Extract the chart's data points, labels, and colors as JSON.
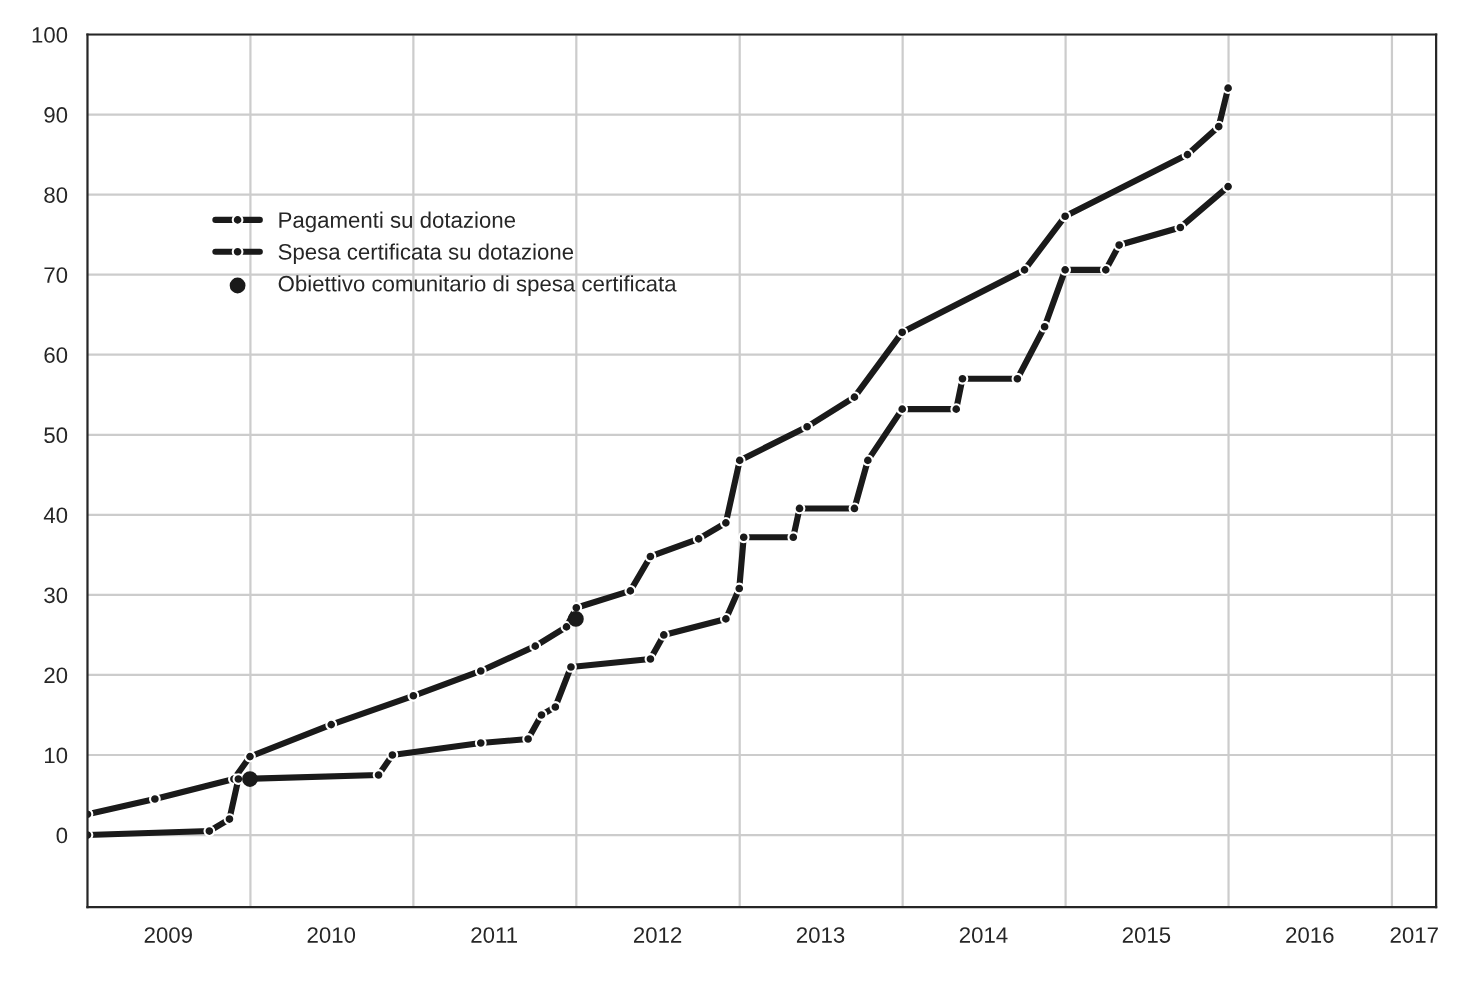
{
  "chart_data": {
    "type": "line",
    "series": [
      {
        "name": "Pagamenti su dotazione",
        "color": "#1a1a1a",
        "marker": "circle",
        "x": [
          "2009-01-01",
          "2009-06-01",
          "2009-11-25",
          "2009-12-31",
          "2010-07-01",
          "2011-01-01",
          "2011-06-01",
          "2011-10-01",
          "2011-12-10",
          "2012-01-01",
          "2012-05-01",
          "2012-06-15",
          "2012-10-01",
          "2012-12-01",
          "2013-01-01",
          "2013-06-01",
          "2013-09-15",
          "2013-12-31",
          "2014-10-01",
          "2014-12-31",
          "2015-10-01",
          "2015-12-10",
          "2015-12-31"
        ],
        "values": [
          2.6,
          4.5,
          7.0,
          9.8,
          13.8,
          17.4,
          20.5,
          23.6,
          26,
          28.4,
          30.5,
          34.8,
          37,
          39,
          46.8,
          51,
          54.7,
          62.8,
          70.6,
          77.3,
          85,
          88.5,
          93.3
        ]
      },
      {
        "name": "Spesa certificata su dotazione",
        "color": "#1a1a1a",
        "marker": "circle",
        "x": [
          "2009-01-01",
          "2009-10-01",
          "2009-11-15",
          "2009-12-05",
          "2010-10-15",
          "2010-11-15",
          "2011-06-01",
          "2011-09-15",
          "2011-10-15",
          "2011-11-15",
          "2011-12-20",
          "2012-06-15",
          "2012-07-15",
          "2012-12-01",
          "2012-12-31",
          "2013-01-10",
          "2013-05-01",
          "2013-05-15",
          "2013-09-15",
          "2013-10-15",
          "2013-12-31",
          "2014-05-01",
          "2014-05-15",
          "2014-09-15",
          "2014-11-15",
          "2014-12-31",
          "2015-04-01",
          "2015-05-01",
          "2015-09-15",
          "2015-12-31"
        ],
        "values": [
          0,
          0.5,
          2,
          7,
          7.5,
          10,
          11.5,
          12,
          15,
          16,
          21,
          22,
          25,
          27,
          30.8,
          37.2,
          37.2,
          40.8,
          40.8,
          46.8,
          53.2,
          53.2,
          57,
          57,
          63.5,
          70.6,
          70.6,
          73.7,
          75.9,
          81
        ]
      },
      {
        "name": "Obiettivo comunitario di spesa certificata",
        "type": "scatter",
        "color": "#1a1a1a",
        "x": [
          "2009-12-31",
          "2011-12-31"
        ],
        "values": [
          7,
          27
        ]
      }
    ],
    "xlim": [
      "2009-01-01",
      "2017-04-10"
    ],
    "xticks": [
      {
        "value": "2009-07-01",
        "label": "2009"
      },
      {
        "value": "2010-01-01",
        "label": null
      },
      {
        "value": "2010-07-01",
        "label": "2010"
      },
      {
        "value": "2011-01-01",
        "label": null
      },
      {
        "value": "2011-07-01",
        "label": "2011"
      },
      {
        "value": "2012-01-01",
        "label": null
      },
      {
        "value": "2012-07-01",
        "label": "2012"
      },
      {
        "value": "2013-01-01",
        "label": null
      },
      {
        "value": "2013-07-01",
        "label": "2013"
      },
      {
        "value": "2014-01-01",
        "label": null
      },
      {
        "value": "2014-07-01",
        "label": "2014"
      },
      {
        "value": "2015-01-01",
        "label": null
      },
      {
        "value": "2015-07-01",
        "label": "2015"
      },
      {
        "value": "2016-01-01",
        "label": null
      },
      {
        "value": "2016-07-01",
        "label": "2016"
      },
      {
        "value": "2017-01-01",
        "label": null
      },
      {
        "value": "2017-02-20",
        "label": "2017"
      }
    ],
    "ylim": [
      -9,
      100
    ],
    "yticks": [
      0,
      10,
      20,
      30,
      40,
      50,
      60,
      70,
      80,
      90,
      100
    ],
    "grid": true,
    "legend": "top left"
  }
}
